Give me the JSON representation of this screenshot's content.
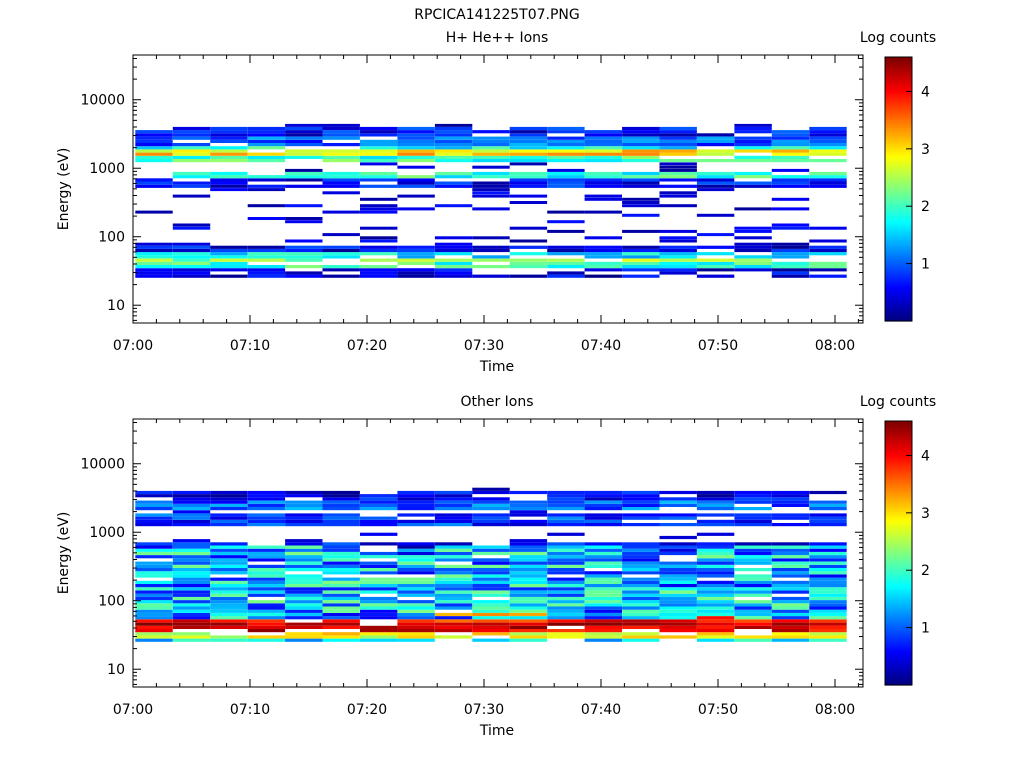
{
  "figure_title": "RPCICA141225T07.PNG",
  "colorbar": {
    "label": "Log counts",
    "ticks": [
      "1",
      "2",
      "3",
      "4"
    ],
    "range": [
      0,
      4.6
    ],
    "colormap": "jet"
  },
  "chart_data": [
    {
      "type": "heatmap",
      "title": "H+ He++ Ions",
      "xlabel": "Time",
      "ylabel": "Energy (eV)",
      "x_tick_labels": [
        "07:00",
        "07:10",
        "07:20",
        "07:30",
        "07:40",
        "07:50",
        "08:00"
      ],
      "y_tick_labels": [
        "10",
        "100",
        "1000",
        "10000"
      ],
      "y_scale": "log",
      "y_range": [
        5.5,
        45000
      ],
      "x_range_minutes_after_0700": [
        0,
        62
      ],
      "time_bins_minutes": 3.2,
      "num_time_bins": 19,
      "profile": [
        {
          "energy_eV": 30,
          "log_counts": 0.4
        },
        {
          "energy_eV": 36,
          "log_counts": 2.0
        },
        {
          "energy_eV": 42,
          "log_counts": 2.4
        },
        {
          "energy_eV": 50,
          "log_counts": 1.6
        },
        {
          "energy_eV": 60,
          "log_counts": 0.5
        },
        {
          "energy_eV": 600,
          "log_counts": 0.6
        },
        {
          "energy_eV": 700,
          "log_counts": 1.9
        },
        {
          "energy_eV": 1400,
          "log_counts": 2.0
        },
        {
          "energy_eV": 1600,
          "log_counts": 3.0
        },
        {
          "energy_eV": 1800,
          "log_counts": 1.8
        },
        {
          "energy_eV": 2400,
          "log_counts": 1.0
        },
        {
          "energy_eV": 3000,
          "log_counts": 0.6
        }
      ]
    },
    {
      "type": "heatmap",
      "title": "Other Ions",
      "xlabel": "Time",
      "ylabel": "Energy (eV)",
      "x_tick_labels": [
        "07:00",
        "07:10",
        "07:20",
        "07:30",
        "07:40",
        "07:50",
        "08:00"
      ],
      "y_tick_labels": [
        "10",
        "100",
        "1000",
        "10000"
      ],
      "y_scale": "log",
      "y_range": [
        5.5,
        45000
      ],
      "x_range_minutes_after_0700": [
        0,
        62
      ],
      "time_bins_minutes": 3.2,
      "num_time_bins": 19,
      "profile": [
        {
          "energy_eV": 26,
          "log_counts": 1.6
        },
        {
          "energy_eV": 30,
          "log_counts": 2.8
        },
        {
          "energy_eV": 36,
          "log_counts": 4.2
        },
        {
          "energy_eV": 42,
          "log_counts": 4.4
        },
        {
          "energy_eV": 50,
          "log_counts": 3.9
        },
        {
          "energy_eV": 60,
          "log_counts": 3.0
        },
        {
          "energy_eV": 80,
          "log_counts": 1.8
        },
        {
          "energy_eV": 150,
          "log_counts": 1.6
        },
        {
          "energy_eV": 300,
          "log_counts": 1.2
        },
        {
          "energy_eV": 550,
          "log_counts": 0.6
        },
        {
          "energy_eV": 1500,
          "log_counts": 0.8
        },
        {
          "energy_eV": 2500,
          "log_counts": 1.0
        },
        {
          "energy_eV": 3100,
          "log_counts": 0.5
        }
      ]
    }
  ]
}
